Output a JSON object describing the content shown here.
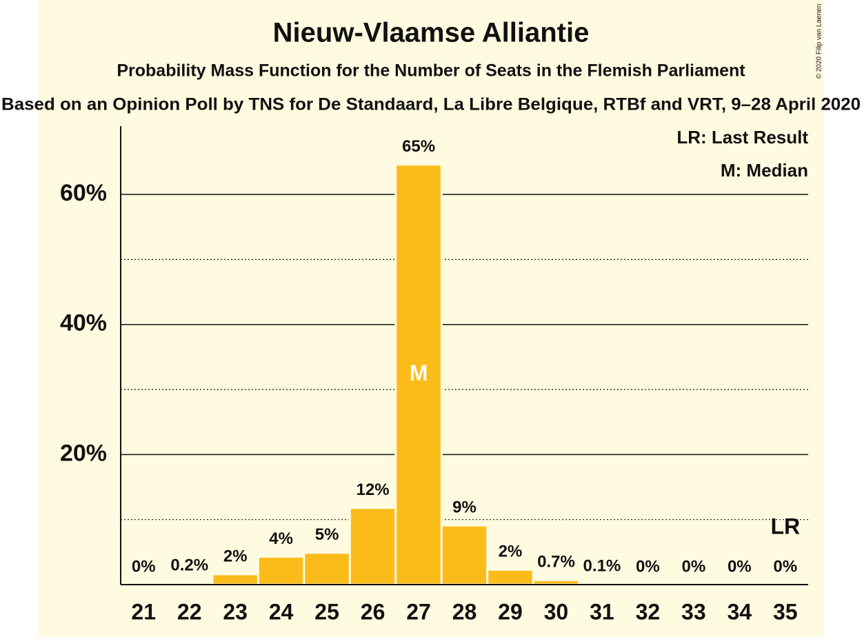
{
  "chart_data": {
    "type": "bar",
    "title": "Nieuw-Vlaamse Alliantie",
    "subtitle": "Probability Mass Function for the Number of Seats in the Flemish Parliament",
    "source": "Based on an Opinion Poll by TNS for De Standaard, La Libre Belgique, RTBf and VRT, 9–28 April 2020",
    "copyright": "© 2020 Filip van Laenen",
    "legend": [
      "LR: Last Result",
      "M: Median"
    ],
    "annotations": [
      {
        "text": "M",
        "category": "27"
      },
      {
        "text": "LR",
        "category": "35"
      }
    ],
    "categories": [
      "21",
      "22",
      "23",
      "24",
      "25",
      "26",
      "27",
      "28",
      "29",
      "30",
      "31",
      "32",
      "33",
      "34",
      "35"
    ],
    "values": [
      0,
      0.2,
      1.6,
      4.3,
      4.9,
      11.8,
      64.6,
      9.1,
      2.3,
      0.7,
      0.1,
      0,
      0,
      0,
      0
    ],
    "value_labels": [
      "0%",
      "0.2%",
      "2%",
      "4%",
      "5%",
      "12%",
      "65%",
      "9%",
      "2%",
      "0.7%",
      "0.1%",
      "0%",
      "0%",
      "0%",
      "0%"
    ],
    "color": "#fbbc1a",
    "ylim": [
      0,
      70.5
    ],
    "yticks": [
      {
        "value": 20,
        "label": "20%"
      },
      {
        "value": 40,
        "label": "40%"
      },
      {
        "value": 60,
        "label": "60%"
      }
    ],
    "minor_yticks": [
      10,
      30,
      50
    ],
    "grid": true
  }
}
